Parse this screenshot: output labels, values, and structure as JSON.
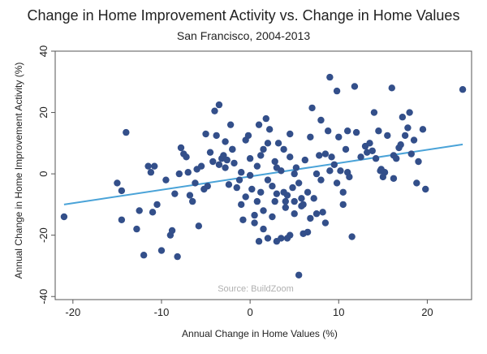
{
  "chart_data": {
    "type": "scatter",
    "title": "Change in Home Improvement Activity vs. Change in Home Values",
    "subtitle": "San Francisco, 2004-2013",
    "xlabel": "Annual Change in Home Values (%)",
    "ylabel": "Annual Change in Home Improvement Activity (%)",
    "source_note": "Source: BuildZoom",
    "xlim": [
      -22,
      25
    ],
    "ylim": [
      -41,
      40
    ],
    "xticks": [
      -20,
      -10,
      0,
      10,
      20
    ],
    "yticks": [
      -40,
      -20,
      0,
      20,
      40
    ],
    "grid": false,
    "colors": {
      "points": "#334f8a",
      "fit_line": "#4aa3d8",
      "frame": "#555555"
    },
    "fit_line": {
      "x": [
        -21,
        24
      ],
      "y": [
        -10,
        9.6
      ]
    },
    "series": [
      {
        "points": [
          [
            -21,
            -14
          ],
          [
            -15,
            -3
          ],
          [
            -14.5,
            -5.5
          ],
          [
            -14.5,
            -15
          ],
          [
            -14,
            13.5
          ],
          [
            -12.8,
            -18
          ],
          [
            -12.5,
            -12
          ],
          [
            -12,
            -26.5
          ],
          [
            -11.5,
            2.5
          ],
          [
            -11.2,
            0.5
          ],
          [
            -11,
            -12.5
          ],
          [
            -10.8,
            2.5
          ],
          [
            -10.5,
            -10
          ],
          [
            -10,
            -25
          ],
          [
            -9.5,
            -2
          ],
          [
            -9,
            -20
          ],
          [
            -8.8,
            -18.5
          ],
          [
            -8.5,
            -6.5
          ],
          [
            -8.2,
            -27
          ],
          [
            -8,
            0
          ],
          [
            -7.8,
            8.5
          ],
          [
            -7.5,
            6.5
          ],
          [
            -7.2,
            5.5
          ],
          [
            -7,
            0.5
          ],
          [
            -6.8,
            -7
          ],
          [
            -6.5,
            -9
          ],
          [
            -6.2,
            -3
          ],
          [
            -6,
            1.5
          ],
          [
            -5.8,
            -17
          ],
          [
            -5.5,
            2.5
          ],
          [
            -5.2,
            -5
          ],
          [
            -5,
            13
          ],
          [
            -4.8,
            -4
          ],
          [
            -4.5,
            7
          ],
          [
            -4.2,
            4
          ],
          [
            -4,
            20.5
          ],
          [
            -3.8,
            12.5
          ],
          [
            -3.5,
            3
          ],
          [
            -3.2,
            5
          ],
          [
            -3,
            6
          ],
          [
            -2.8,
            2
          ],
          [
            -2.6,
            4.5
          ],
          [
            -2.4,
            -3.5
          ],
          [
            -2.2,
            16
          ],
          [
            -2,
            8
          ],
          [
            -1.8,
            3.5
          ],
          [
            -1.5,
            -4.5
          ],
          [
            -1.2,
            -2
          ],
          [
            -1,
            0.5
          ],
          [
            -0.8,
            -15
          ],
          [
            -0.5,
            11
          ],
          [
            -0.2,
            12.5
          ],
          [
            0,
            -0.5
          ],
          [
            0.2,
            -5
          ],
          [
            0.5,
            -13.5
          ],
          [
            0.8,
            -9
          ],
          [
            1,
            16
          ],
          [
            1.2,
            6
          ],
          [
            1.5,
            -12
          ],
          [
            1.8,
            18
          ],
          [
            2,
            -2
          ],
          [
            2.2,
            14.5
          ],
          [
            2.5,
            -4
          ],
          [
            2.8,
            4
          ],
          [
            3,
            -6.5
          ],
          [
            3.2,
            10
          ],
          [
            3.5,
            1
          ],
          [
            3.8,
            8
          ],
          [
            4,
            -11
          ],
          [
            4.2,
            -7
          ],
          [
            4.5,
            5.5
          ],
          [
            4.8,
            -4.5
          ],
          [
            5,
            -9
          ],
          [
            5.2,
            2
          ],
          [
            5.5,
            -3
          ],
          [
            5.8,
            -10.5
          ],
          [
            6,
            -19.5
          ],
          [
            6.2,
            4.5
          ],
          [
            6.5,
            -6
          ],
          [
            6.8,
            -14.5
          ],
          [
            7,
            21.5
          ],
          [
            7.2,
            -8
          ],
          [
            7.5,
            0
          ],
          [
            7.8,
            6
          ],
          [
            8,
            17.5
          ],
          [
            8.2,
            -12.5
          ],
          [
            8.5,
            -16
          ],
          [
            8.8,
            14
          ],
          [
            9,
            31.5
          ],
          [
            9.2,
            5.5
          ],
          [
            9.5,
            3
          ],
          [
            9.8,
            -3
          ],
          [
            10,
            12
          ],
          [
            10.2,
            1
          ],
          [
            10.5,
            -6
          ],
          [
            10.8,
            8
          ],
          [
            11,
            0.5
          ],
          [
            11.2,
            -1
          ],
          [
            0.5,
            -16
          ],
          [
            1,
            -22
          ],
          [
            1.5,
            -18
          ],
          [
            2,
            -21
          ],
          [
            2.5,
            -14
          ],
          [
            3,
            -22
          ],
          [
            3.5,
            -21
          ],
          [
            4,
            -9
          ],
          [
            4.2,
            -21
          ],
          [
            4.5,
            -20
          ],
          [
            5,
            -13
          ],
          [
            5.5,
            -33
          ],
          [
            5.8,
            -8
          ],
          [
            6,
            -10
          ],
          [
            6.5,
            -19
          ],
          [
            7.5,
            -13
          ],
          [
            8,
            -2
          ],
          [
            8.5,
            6.5
          ],
          [
            9,
            1
          ],
          [
            9.8,
            27
          ],
          [
            10.5,
            -10
          ],
          [
            11,
            14
          ],
          [
            11.5,
            -20.5
          ],
          [
            11.8,
            28.5
          ],
          [
            12,
            13.5
          ],
          [
            12.5,
            5.5
          ],
          [
            13,
            9
          ],
          [
            13.2,
            7
          ],
          [
            13.5,
            10
          ],
          [
            14,
            20
          ],
          [
            14.2,
            5
          ],
          [
            14.5,
            14
          ],
          [
            14.8,
            1.5
          ],
          [
            15,
            -1
          ],
          [
            15.2,
            0.5
          ],
          [
            15.5,
            12.5
          ],
          [
            16,
            28
          ],
          [
            16.2,
            6
          ],
          [
            16.5,
            5
          ],
          [
            16.8,
            8.5
          ],
          [
            17,
            9.5
          ],
          [
            17.2,
            18.5
          ],
          [
            17.5,
            12.5
          ],
          [
            17.8,
            15
          ],
          [
            18,
            20
          ],
          [
            18.2,
            6.5
          ],
          [
            18.5,
            11
          ],
          [
            18.8,
            -3
          ],
          [
            19,
            4
          ],
          [
            19.5,
            14.5
          ],
          [
            19.8,
            -5
          ],
          [
            24,
            27.5
          ],
          [
            1.5,
            8
          ],
          [
            2,
            10
          ],
          [
            -1,
            -10
          ],
          [
            0,
            5
          ],
          [
            3,
            2
          ],
          [
            5,
            0
          ],
          [
            -2,
            8
          ],
          [
            -0.5,
            -7.5
          ],
          [
            0.8,
            2.5
          ],
          [
            2.8,
            -9
          ],
          [
            4.5,
            13
          ],
          [
            6.8,
            12
          ],
          [
            -3.5,
            22.5
          ],
          [
            -2.8,
            10.5
          ],
          [
            1.2,
            -6
          ],
          [
            3.8,
            -6
          ],
          [
            13.8,
            7.5
          ],
          [
            16.2,
            -1.5
          ],
          [
            14.7,
            1
          ]
        ]
      }
    ]
  }
}
